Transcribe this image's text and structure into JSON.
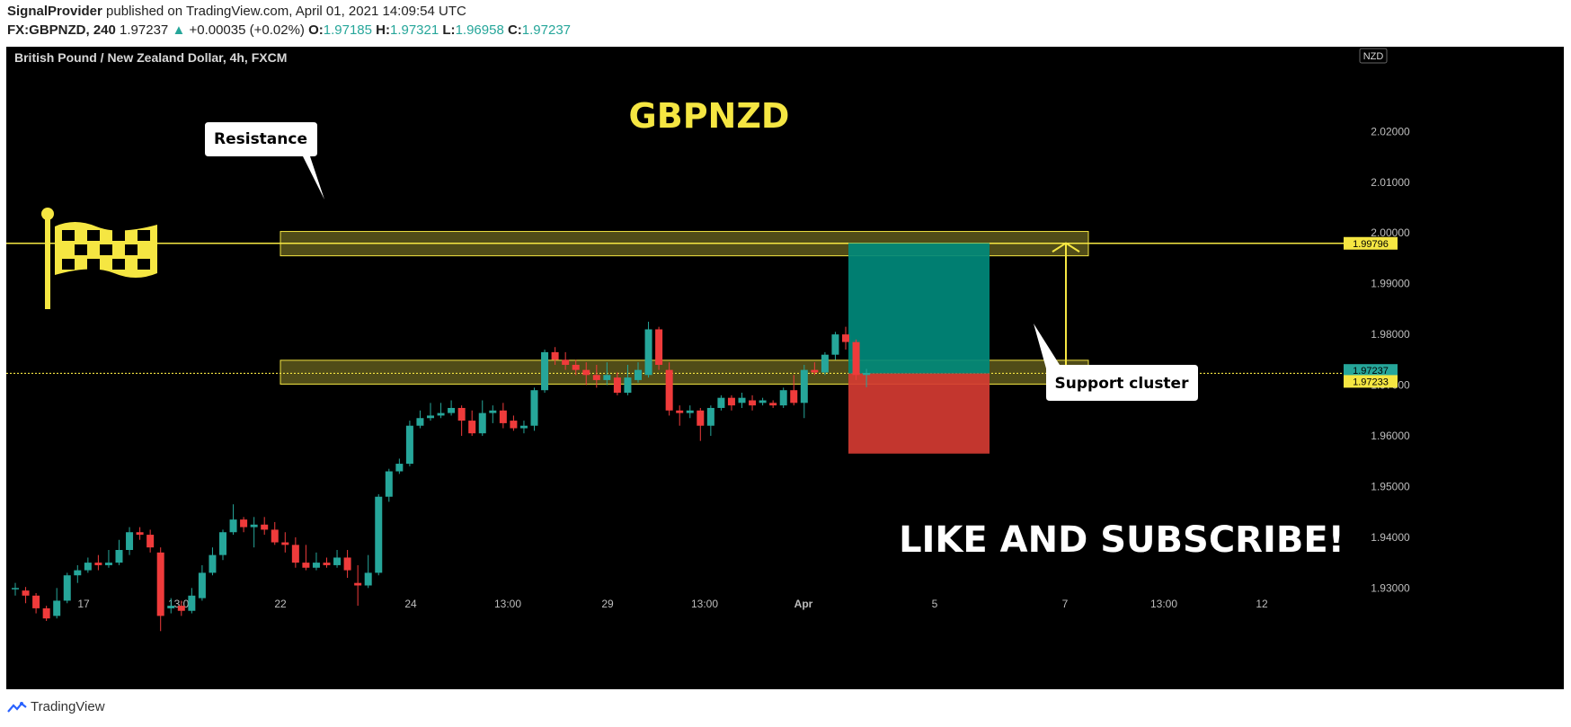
{
  "header": {
    "publisher": "SignalProvider",
    "published_text": "published on TradingView.com, April 01, 2021 14:09:54 UTC",
    "symbol": "FX:GBPNZD, 240",
    "last": "1.97237",
    "change": "+0.00035 (+0.02%)",
    "o_label": "O:",
    "o_value": "1.97185",
    "h_label": "H:",
    "h_value": "1.97321",
    "l_label": "L:",
    "l_value": "1.96958",
    "c_label": "C:",
    "c_value": "1.97237"
  },
  "footer": {
    "brand": "TradingView"
  },
  "chart_data": {
    "type": "candlestick",
    "title": "GBPNZD",
    "subtitle": "British Pound / New Zealand Dollar, 4h, FXCM",
    "currency_badge": "NZD",
    "ylim": [
      1.9215,
      2.0275
    ],
    "yticks": [
      "2.02000",
      "2.01000",
      "2.00000",
      "1.99000",
      "1.98000",
      "1.97000",
      "1.96000",
      "1.95000",
      "1.94000",
      "1.93000"
    ],
    "xticks": [
      "17",
      "13:00",
      "22",
      "24",
      "13:00",
      "29",
      "13:00",
      "Apr",
      "5",
      "7",
      "13:00",
      "12"
    ],
    "price_labels": [
      {
        "text": "1.99796",
        "value": 1.99796,
        "color": "#f5e642"
      },
      {
        "text": "1.97237",
        "value": 1.97237,
        "color": "#26a69a"
      },
      {
        "text": "1.97233",
        "value": 1.97233,
        "color": "#f5e642"
      }
    ],
    "zones": [
      {
        "name": "resistance-zone",
        "low": 1.9955,
        "high": 2.0003
      },
      {
        "name": "support-zone",
        "low": 1.9702,
        "high": 1.9749
      }
    ],
    "horizontal_lines": [
      1.99796,
      1.97233
    ],
    "annotations": {
      "resistance": "Resistance",
      "support": "Support cluster",
      "cta": "LIKE AND SUBSCRIBE!"
    },
    "position": {
      "entry": 1.9723,
      "target": 1.998,
      "stop": 1.9565
    },
    "colors": {
      "up": "#26a69a",
      "down": "#ef3b3b",
      "zone": "#6b6620",
      "line": "#f5e642",
      "target": "#00897b",
      "stop": "#d43b32"
    },
    "candles": [
      [
        1.93,
        1.93,
        1.9285,
        1.931
      ],
      [
        1.9295,
        1.9285,
        1.927,
        1.9302
      ],
      [
        1.9285,
        1.926,
        1.925,
        1.929
      ],
      [
        1.926,
        1.924,
        1.9235,
        1.9265
      ],
      [
        1.9245,
        1.9275,
        1.924,
        1.93
      ],
      [
        1.9275,
        1.9325,
        1.927,
        1.933
      ],
      [
        1.9325,
        1.9335,
        1.931,
        1.9345
      ],
      [
        1.9335,
        1.935,
        1.933,
        1.936
      ],
      [
        1.935,
        1.9345,
        1.9335,
        1.9365
      ],
      [
        1.9345,
        1.935,
        1.934,
        1.9375
      ],
      [
        1.935,
        1.9375,
        1.9345,
        1.9395
      ],
      [
        1.9375,
        1.941,
        1.9365,
        1.942
      ],
      [
        1.941,
        1.9405,
        1.9395,
        1.942
      ],
      [
        1.9405,
        1.938,
        1.937,
        1.9415
      ],
      [
        1.937,
        1.9245,
        1.9215,
        1.938
      ],
      [
        1.926,
        1.9265,
        1.925,
        1.928
      ],
      [
        1.9265,
        1.9255,
        1.9245,
        1.9275
      ],
      [
        1.9255,
        1.9285,
        1.925,
        1.93
      ],
      [
        1.928,
        1.933,
        1.9275,
        1.9345
      ],
      [
        1.933,
        1.9365,
        1.9325,
        1.938
      ],
      [
        1.9365,
        1.941,
        1.9355,
        1.9415
      ],
      [
        1.941,
        1.9435,
        1.9405,
        1.9465
      ],
      [
        1.9435,
        1.942,
        1.941,
        1.944
      ],
      [
        1.942,
        1.9425,
        1.938,
        1.944
      ],
      [
        1.9425,
        1.9415,
        1.9405,
        1.944
      ],
      [
        1.9415,
        1.939,
        1.9385,
        1.943
      ],
      [
        1.939,
        1.9385,
        1.937,
        1.941
      ],
      [
        1.9385,
        1.935,
        1.934,
        1.94
      ],
      [
        1.935,
        1.934,
        1.9335,
        1.9385
      ],
      [
        1.934,
        1.935,
        1.9335,
        1.937
      ],
      [
        1.935,
        1.9345,
        1.934,
        1.936
      ],
      [
        1.9345,
        1.936,
        1.934,
        1.9375
      ],
      [
        1.936,
        1.9335,
        1.932,
        1.9375
      ],
      [
        1.931,
        1.9305,
        1.9265,
        1.9345
      ],
      [
        1.9305,
        1.933,
        1.93,
        1.9365
      ],
      [
        1.933,
        1.948,
        1.9325,
        1.9485
      ],
      [
        1.948,
        1.953,
        1.947,
        1.9535
      ],
      [
        1.953,
        1.9545,
        1.9525,
        1.9555
      ],
      [
        1.9545,
        1.962,
        1.954,
        1.963
      ],
      [
        1.962,
        1.9635,
        1.9615,
        1.965
      ],
      [
        1.9635,
        1.964,
        1.963,
        1.9665
      ],
      [
        1.964,
        1.9645,
        1.9635,
        1.9665
      ],
      [
        1.9645,
        1.9655,
        1.964,
        1.967
      ],
      [
        1.9655,
        1.963,
        1.96,
        1.966
      ],
      [
        1.963,
        1.9605,
        1.96,
        1.965
      ],
      [
        1.9605,
        1.9645,
        1.96,
        1.967
      ],
      [
        1.9645,
        1.965,
        1.9625,
        1.966
      ],
      [
        1.965,
        1.9625,
        1.9615,
        1.9665
      ],
      [
        1.963,
        1.9615,
        1.961,
        1.964
      ],
      [
        1.9615,
        1.962,
        1.9605,
        1.963
      ],
      [
        1.962,
        1.969,
        1.961,
        1.9695
      ],
      [
        1.969,
        1.9765,
        1.9685,
        1.977
      ],
      [
        1.9765,
        1.975,
        1.974,
        1.9775
      ],
      [
        1.975,
        1.974,
        1.973,
        1.9765
      ],
      [
        1.974,
        1.973,
        1.972,
        1.975
      ],
      [
        1.973,
        1.972,
        1.97,
        1.9745
      ],
      [
        1.972,
        1.971,
        1.9695,
        1.974
      ],
      [
        1.971,
        1.972,
        1.97,
        1.9745
      ],
      [
        1.9715,
        1.9685,
        1.968,
        1.9725
      ],
      [
        1.9685,
        1.9715,
        1.968,
        1.974
      ],
      [
        1.971,
        1.973,
        1.9705,
        1.9745
      ],
      [
        1.972,
        1.981,
        1.9715,
        1.9825
      ],
      [
        1.981,
        1.974,
        1.973,
        1.9815
      ],
      [
        1.973,
        1.965,
        1.964,
        1.9745
      ],
      [
        1.965,
        1.9645,
        1.962,
        1.966
      ],
      [
        1.9645,
        1.965,
        1.9635,
        1.966
      ],
      [
        1.965,
        1.962,
        1.959,
        1.9655
      ],
      [
        1.962,
        1.9655,
        1.96,
        1.966
      ],
      [
        1.9655,
        1.9675,
        1.965,
        1.968
      ],
      [
        1.9675,
        1.966,
        1.965,
        1.968
      ],
      [
        1.9665,
        1.9675,
        1.9655,
        1.9685
      ],
      [
        1.967,
        1.966,
        1.965,
        1.968
      ],
      [
        1.9665,
        1.967,
        1.966,
        1.9675
      ],
      [
        1.9665,
        1.966,
        1.9655,
        1.967
      ],
      [
        1.966,
        1.969,
        1.9655,
        1.9695
      ],
      [
        1.969,
        1.9665,
        1.966,
        1.972
      ],
      [
        1.9665,
        1.973,
        1.9635,
        1.974
      ],
      [
        1.973,
        1.9725,
        1.972,
        1.9745
      ],
      [
        1.9725,
        1.976,
        1.972,
        1.9765
      ],
      [
        1.976,
        1.98,
        1.975,
        1.9805
      ],
      [
        1.98,
        1.9785,
        1.977,
        1.9815
      ],
      [
        1.9785,
        1.972,
        1.971,
        1.979
      ],
      [
        1.972,
        1.9724,
        1.9696,
        1.9732
      ]
    ]
  }
}
